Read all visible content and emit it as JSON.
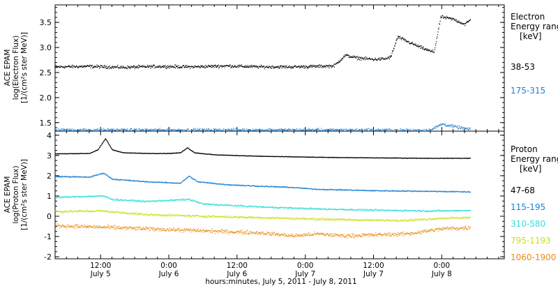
{
  "chart_data": {
    "type": "scatter",
    "xlabel": "hours:minutes, July  5, 2011 - July  8, 2011",
    "x_ticks": [
      {
        "time": "12:00",
        "date": "July 5"
      },
      {
        "time": "0:00",
        "date": "July 6"
      },
      {
        "time": "12:00",
        "date": "July 6"
      },
      {
        "time": "0:00",
        "date": "July 7"
      },
      {
        "time": "12:00",
        "date": "July 7"
      },
      {
        "time": "0:00",
        "date": "July 8"
      }
    ],
    "x_tick_hours": [
      12,
      24,
      36,
      48,
      60,
      72
    ],
    "xlim_hours": [
      4,
      83
    ],
    "data_end_hour": 77,
    "panels": [
      {
        "id": "electron",
        "ylabel_lines": [
          "ACE EPAM",
          "log(Electron Flux)",
          "[1/(cm²s ster MeV)]"
        ],
        "ylim": [
          1.33,
          3.85
        ],
        "yticks": [
          "1.5",
          "2.0",
          "2.5",
          "3.0",
          "3.5"
        ],
        "yvalues": [
          1.5,
          2.0,
          2.5,
          3.0,
          3.5
        ],
        "legend_title": [
          "Electron",
          "Energy ranges",
          "[keV]"
        ],
        "series": [
          {
            "name": "38-53",
            "color": "#000000",
            "points": [
              [
                4,
                2.62
              ],
              [
                10,
                2.63
              ],
              [
                16,
                2.61
              ],
              [
                22,
                2.63
              ],
              [
                28,
                2.62
              ],
              [
                34,
                2.64
              ],
              [
                40,
                2.62
              ],
              [
                46,
                2.62
              ],
              [
                50,
                2.63
              ],
              [
                53,
                2.64
              ],
              [
                55,
                2.85
              ],
              [
                57,
                2.8
              ],
              [
                60,
                2.77
              ],
              [
                62,
                2.78
              ],
              [
                63,
                2.82
              ],
              [
                64.2,
                3.22
              ],
              [
                66,
                3.12
              ],
              [
                68,
                3.02
              ],
              [
                70,
                2.93
              ],
              [
                70.6,
                2.92
              ],
              [
                71.8,
                3.62
              ],
              [
                74,
                3.57
              ],
              [
                76,
                3.47
              ],
              [
                77,
                3.56
              ]
            ]
          },
          {
            "name": "175-315",
            "color": "#2080d0",
            "points": [
              [
                4,
                1.36
              ],
              [
                20,
                1.36
              ],
              [
                40,
                1.36
              ],
              [
                60,
                1.36
              ],
              [
                68,
                1.35
              ],
              [
                70,
                1.36
              ],
              [
                72,
                1.48
              ],
              [
                74,
                1.43
              ],
              [
                77,
                1.37
              ]
            ]
          }
        ]
      },
      {
        "id": "proton",
        "ylabel_lines": [
          "ACE EPAM",
          "log(Proton Flux)",
          "[1/(cm²s ster MeV)]"
        ],
        "ylim": [
          -2.1,
          4.2
        ],
        "yticks": [
          "-2",
          "-1",
          "0",
          "1",
          "2",
          "3",
          "4"
        ],
        "yvalues": [
          -2,
          -1,
          0,
          1,
          2,
          3,
          4
        ],
        "legend_title": [
          "Proton",
          "Energy ranges",
          "[keV]"
        ],
        "series": [
          {
            "name": "47-68",
            "color": "#000000",
            "points": [
              [
                4,
                3.1
              ],
              [
                10,
                3.12
              ],
              [
                11.5,
                3.3
              ],
              [
                12.8,
                3.85
              ],
              [
                14,
                3.3
              ],
              [
                16,
                3.15
              ],
              [
                20,
                3.12
              ],
              [
                24,
                3.12
              ],
              [
                26,
                3.15
              ],
              [
                27.2,
                3.4
              ],
              [
                28.5,
                3.15
              ],
              [
                32,
                3.05
              ],
              [
                40,
                2.98
              ],
              [
                50,
                2.93
              ],
              [
                60,
                2.9
              ],
              [
                70,
                2.88
              ],
              [
                77,
                2.88
              ]
            ]
          },
          {
            "name": "115-195",
            "color": "#2080d0",
            "points": [
              [
                4,
                1.98
              ],
              [
                10,
                1.95
              ],
              [
                12.5,
                2.15
              ],
              [
                14,
                1.85
              ],
              [
                20,
                1.72
              ],
              [
                26,
                1.65
              ],
              [
                27.5,
                2.0
              ],
              [
                29,
                1.72
              ],
              [
                34,
                1.58
              ],
              [
                40,
                1.5
              ],
              [
                45,
                1.45
              ],
              [
                50,
                1.35
              ],
              [
                60,
                1.28
              ],
              [
                70,
                1.25
              ],
              [
                77,
                1.22
              ]
            ]
          },
          {
            "name": "310-580",
            "color": "#30e0d8",
            "points": [
              [
                4,
                0.95
              ],
              [
                12.5,
                1.02
              ],
              [
                14,
                0.85
              ],
              [
                20,
                0.75
              ],
              [
                27.5,
                0.85
              ],
              [
                30,
                0.62
              ],
              [
                40,
                0.48
              ],
              [
                50,
                0.38
              ],
              [
                60,
                0.32
              ],
              [
                70,
                0.28
              ],
              [
                77,
                0.3
              ]
            ]
          },
          {
            "name": "795-1193",
            "color": "#c8e020",
            "points": [
              [
                4,
                0.25
              ],
              [
                12,
                0.28
              ],
              [
                20,
                0.1
              ],
              [
                30,
                0.02
              ],
              [
                40,
                -0.05
              ],
              [
                50,
                -0.12
              ],
              [
                60,
                -0.18
              ],
              [
                66,
                -0.18
              ],
              [
                72,
                -0.08
              ],
              [
                77,
                -0.05
              ]
            ]
          },
          {
            "name": "1060-1900",
            "color": "#e88a10",
            "points": [
              [
                4,
                -0.45
              ],
              [
                10,
                -0.5
              ],
              [
                20,
                -0.6
              ],
              [
                30,
                -0.7
              ],
              [
                40,
                -0.8
              ],
              [
                46,
                -0.95
              ],
              [
                50,
                -0.85
              ],
              [
                55,
                -0.95
              ],
              [
                60,
                -0.9
              ],
              [
                66,
                -0.85
              ],
              [
                72,
                -0.6
              ],
              [
                77,
                -0.55
              ]
            ]
          }
        ]
      }
    ]
  }
}
